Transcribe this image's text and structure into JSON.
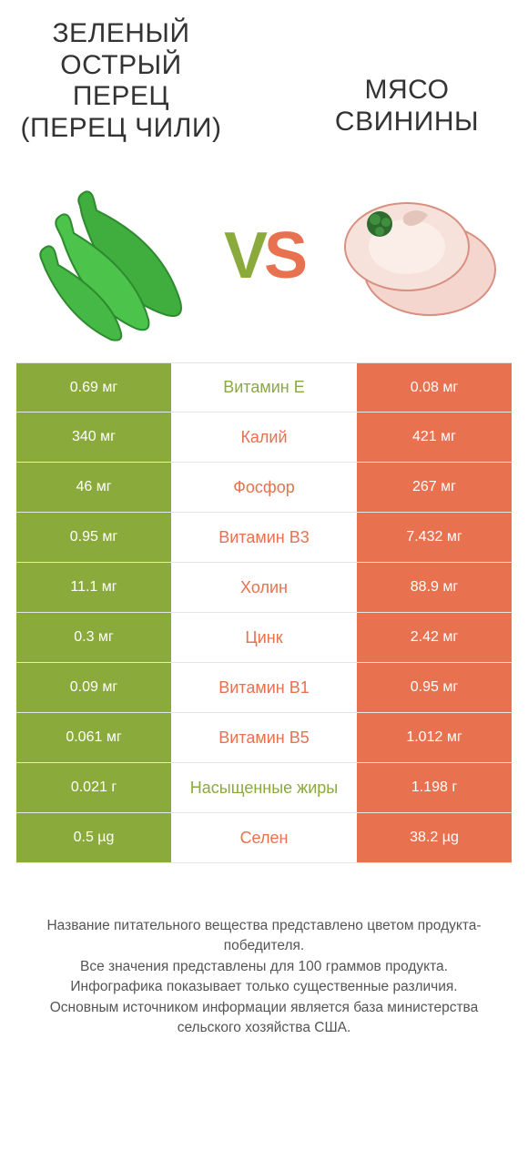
{
  "titles": {
    "left": "ЗЕЛЕНЫЙ ОСТРЫЙ ПЕРЕЦ (ПЕРЕЦ ЧИЛИ)",
    "right": "МЯСО СВИНИНЫ"
  },
  "vs": {
    "v": "V",
    "s": "S"
  },
  "colors": {
    "green": "#8aaa3b",
    "orange": "#e8714f",
    "border": "#e5e5e5",
    "bg": "#ffffff"
  },
  "images": {
    "left_alt": "green-chili-peppers",
    "right_alt": "pork-meat"
  },
  "rows": [
    {
      "left": "0.69 мг",
      "label": "Витамин E",
      "winner": "green",
      "right": "0.08 мг"
    },
    {
      "left": "340 мг",
      "label": "Калий",
      "winner": "orange",
      "right": "421 мг"
    },
    {
      "left": "46 мг",
      "label": "Фосфор",
      "winner": "orange",
      "right": "267 мг"
    },
    {
      "left": "0.95 мг",
      "label": "Витамин B3",
      "winner": "orange",
      "right": "7.432 мг"
    },
    {
      "left": "11.1 мг",
      "label": "Холин",
      "winner": "orange",
      "right": "88.9 мг"
    },
    {
      "left": "0.3 мг",
      "label": "Цинк",
      "winner": "orange",
      "right": "2.42 мг"
    },
    {
      "left": "0.09 мг",
      "label": "Витамин B1",
      "winner": "orange",
      "right": "0.95 мг"
    },
    {
      "left": "0.061 мг",
      "label": "Витамин B5",
      "winner": "orange",
      "right": "1.012 мг"
    },
    {
      "left": "0.021 г",
      "label": "Насыщенные жиры",
      "winner": "green",
      "right": "1.198 г"
    },
    {
      "left": "0.5 µg",
      "label": "Селен",
      "winner": "orange",
      "right": "38.2 µg"
    }
  ],
  "footer_lines": [
    "Название питательного вещества представлено цветом продукта-победителя.",
    "Все значения представлены для 100 граммов продукта.",
    "Инфографика показывает только существенные различия.",
    "Основным источником информации является база министерства сельского хозяйства США."
  ]
}
